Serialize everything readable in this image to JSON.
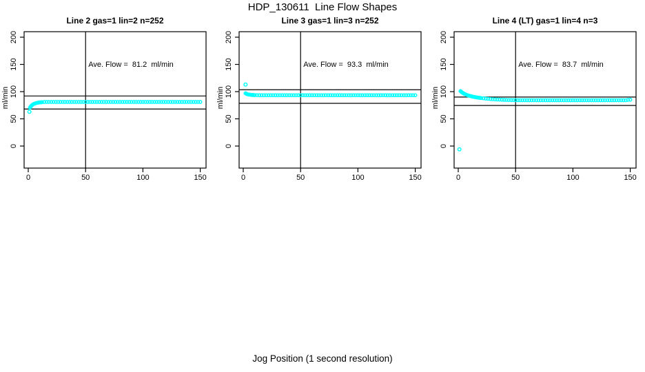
{
  "figure": {
    "title": "HDP_130611  Line Flow Shapes",
    "xlabel": "Jog Position (1 second resolution)",
    "background_color": "#ffffff",
    "point_color": "#00ffff",
    "axis_color": "#000000",
    "text_color": "#000000"
  },
  "chart_data": [
    {
      "type": "scatter",
      "title": "Line 2 gas=1 lin=2 n=252",
      "line": 2,
      "gas": 1,
      "lin": 2,
      "n": 252,
      "annotation": "Ave. Flow =  81.2  ml/min",
      "ave_flow_ml_min": 81.2,
      "ylabel": "ml/min",
      "x_ticks": [
        0,
        50,
        100,
        150
      ],
      "y_ticks": [
        0,
        50,
        100,
        150,
        200
      ],
      "xlim": [
        0,
        150
      ],
      "ylim": [
        0,
        200
      ],
      "grid": false,
      "reference_hlines": [
        92,
        68
      ],
      "reference_vline": 50,
      "outlier_points": [
        [
          1,
          63
        ]
      ],
      "points": [
        [
          1.5,
          70.5
        ],
        [
          2,
          72
        ],
        [
          2.5,
          73.5
        ],
        [
          3,
          74.5
        ],
        [
          3.5,
          75.5
        ],
        [
          4,
          76.3
        ],
        [
          5,
          77.5
        ],
        [
          6,
          78.4
        ],
        [
          7,
          79
        ],
        [
          8,
          79.5
        ],
        [
          9,
          79.9
        ],
        [
          10,
          80.2
        ],
        [
          11,
          80.4
        ],
        [
          12,
          80.6
        ],
        [
          14,
          81
        ],
        [
          16,
          81
        ],
        [
          18,
          81
        ],
        [
          20,
          81
        ],
        [
          22,
          81
        ],
        [
          24,
          81
        ],
        [
          26,
          81
        ],
        [
          28,
          81
        ],
        [
          30,
          81
        ],
        [
          32,
          81
        ],
        [
          34,
          81
        ],
        [
          36,
          81
        ],
        [
          38,
          81
        ],
        [
          40,
          81
        ],
        [
          42,
          81
        ],
        [
          44,
          81
        ],
        [
          46,
          81
        ],
        [
          48,
          81
        ],
        [
          50,
          81
        ],
        [
          52,
          81
        ],
        [
          54,
          81
        ],
        [
          56,
          81
        ],
        [
          58,
          81
        ],
        [
          60,
          81
        ],
        [
          62,
          81
        ],
        [
          64,
          81
        ],
        [
          66,
          81
        ],
        [
          68,
          81
        ],
        [
          70,
          81
        ],
        [
          72,
          81
        ],
        [
          74,
          81
        ],
        [
          76,
          81
        ],
        [
          78,
          81
        ],
        [
          80,
          81
        ],
        [
          82,
          81
        ],
        [
          84,
          81
        ],
        [
          86,
          81
        ],
        [
          88,
          81
        ],
        [
          90,
          81
        ],
        [
          92,
          81
        ],
        [
          94,
          81
        ],
        [
          96,
          81
        ],
        [
          98,
          81
        ],
        [
          100,
          81
        ],
        [
          102,
          81
        ],
        [
          104,
          81
        ],
        [
          106,
          81
        ],
        [
          108,
          81
        ],
        [
          110,
          81
        ],
        [
          112,
          81
        ],
        [
          114,
          81
        ],
        [
          116,
          81
        ],
        [
          118,
          81
        ],
        [
          120,
          81
        ],
        [
          122,
          81
        ],
        [
          124,
          81
        ],
        [
          126,
          81
        ],
        [
          128,
          81
        ],
        [
          130,
          81
        ],
        [
          132,
          81
        ],
        [
          134,
          81
        ],
        [
          136,
          81
        ],
        [
          138,
          81
        ],
        [
          140,
          81
        ],
        [
          142,
          81
        ],
        [
          144,
          81
        ],
        [
          146,
          81
        ],
        [
          148,
          81
        ],
        [
          150,
          81
        ]
      ]
    },
    {
      "type": "scatter",
      "title": "Line 3 gas=1 lin=3 n=252",
      "line": 3,
      "gas": 1,
      "lin": 3,
      "n": 252,
      "annotation": "Ave. Flow =  93.3  ml/min",
      "ave_flow_ml_min": 93.3,
      "ylabel": "ml/min",
      "x_ticks": [
        0,
        50,
        100,
        150
      ],
      "y_ticks": [
        0,
        50,
        100,
        150,
        200
      ],
      "xlim": [
        0,
        150
      ],
      "ylim": [
        0,
        200
      ],
      "grid": false,
      "reference_hlines": [
        103.5,
        78.5
      ],
      "reference_vline": 50,
      "outlier_points": [
        [
          2,
          113
        ]
      ],
      "points": [
        [
          2,
          97
        ],
        [
          2.5,
          96.3
        ],
        [
          3,
          95.8
        ],
        [
          3.5,
          95.3
        ],
        [
          4,
          95
        ],
        [
          5,
          94.6
        ],
        [
          6,
          94.3
        ],
        [
          7,
          94
        ],
        [
          8,
          93.8
        ],
        [
          9,
          93.7
        ],
        [
          10,
          93.6
        ],
        [
          12,
          93.5
        ],
        [
          14,
          93.4
        ],
        [
          16,
          93.4
        ],
        [
          18,
          93.4
        ],
        [
          20,
          93.4
        ],
        [
          22,
          93.4
        ],
        [
          24,
          93.4
        ],
        [
          26,
          93.4
        ],
        [
          28,
          93.4
        ],
        [
          30,
          93.4
        ],
        [
          32,
          93.4
        ],
        [
          34,
          93.4
        ],
        [
          36,
          93.4
        ],
        [
          38,
          93.4
        ],
        [
          40,
          93.4
        ],
        [
          42,
          93.4
        ],
        [
          44,
          93.4
        ],
        [
          46,
          93.4
        ],
        [
          48,
          93.4
        ],
        [
          50,
          93.4
        ],
        [
          52,
          93.4
        ],
        [
          54,
          93.4
        ],
        [
          56,
          93.4
        ],
        [
          58,
          93.4
        ],
        [
          60,
          93.4
        ],
        [
          62,
          93.4
        ],
        [
          64,
          93.4
        ],
        [
          66,
          93.4
        ],
        [
          68,
          93.4
        ],
        [
          70,
          93.4
        ],
        [
          72,
          93.4
        ],
        [
          74,
          93.4
        ],
        [
          76,
          93.4
        ],
        [
          78,
          93.4
        ],
        [
          80,
          93.4
        ],
        [
          82,
          93.4
        ],
        [
          84,
          93.4
        ],
        [
          86,
          93.4
        ],
        [
          88,
          93.4
        ],
        [
          90,
          93.4
        ],
        [
          92,
          93.4
        ],
        [
          94,
          93.4
        ],
        [
          96,
          93.4
        ],
        [
          98,
          93.4
        ],
        [
          100,
          93.4
        ],
        [
          102,
          93.4
        ],
        [
          104,
          93.4
        ],
        [
          106,
          93.4
        ],
        [
          108,
          93.4
        ],
        [
          110,
          93.4
        ],
        [
          112,
          93.4
        ],
        [
          114,
          93.4
        ],
        [
          116,
          93.4
        ],
        [
          118,
          93.4
        ],
        [
          120,
          93.4
        ],
        [
          122,
          93.4
        ],
        [
          124,
          93.4
        ],
        [
          126,
          93.4
        ],
        [
          128,
          93.4
        ],
        [
          130,
          93.4
        ],
        [
          132,
          93.4
        ],
        [
          134,
          93.4
        ],
        [
          136,
          93.4
        ],
        [
          138,
          93.4
        ],
        [
          140,
          93.4
        ],
        [
          142,
          93.4
        ],
        [
          144,
          93.4
        ],
        [
          146,
          93.4
        ],
        [
          148,
          93.4
        ],
        [
          150,
          93.4
        ]
      ]
    },
    {
      "type": "scatter",
      "title": "Line 4 (LT) gas=1 lin=4 n=3",
      "line": 4,
      "line_note": "LT",
      "gas": 1,
      "lin": 4,
      "n": 3,
      "annotation": "Ave. Flow =  83.7  ml/min",
      "ave_flow_ml_min": 83.7,
      "ylabel": "ml/min",
      "x_ticks": [
        0,
        50,
        100,
        150
      ],
      "y_ticks": [
        0,
        50,
        100,
        150,
        200
      ],
      "xlim": [
        0,
        150
      ],
      "ylim": [
        0,
        200
      ],
      "grid": false,
      "reference_hlines": [
        90,
        74.5
      ],
      "reference_vline": 50,
      "outlier_points": [
        [
          1,
          -6
        ]
      ],
      "points": [
        [
          2,
          101
        ],
        [
          2.5,
          100
        ],
        [
          3,
          99
        ],
        [
          3.5,
          98.2
        ],
        [
          4,
          97.5
        ],
        [
          5,
          96.2
        ],
        [
          6,
          95.2
        ],
        [
          7,
          94.3
        ],
        [
          8,
          93.5
        ],
        [
          9,
          92.8
        ],
        [
          10,
          92.2
        ],
        [
          11,
          91.6
        ],
        [
          12,
          91.1
        ],
        [
          13,
          90.6
        ],
        [
          14,
          90.2
        ],
        [
          15,
          89.8
        ],
        [
          16,
          89.4
        ],
        [
          17,
          89.1
        ],
        [
          18,
          88.8
        ],
        [
          19,
          88.5
        ],
        [
          20,
          88.2
        ],
        [
          22,
          87.7
        ],
        [
          24,
          87.2
        ],
        [
          26,
          86.8
        ],
        [
          28,
          86.4
        ],
        [
          30,
          86.1
        ],
        [
          32,
          85.8
        ],
        [
          34,
          85.5
        ],
        [
          36,
          85.3
        ],
        [
          38,
          85.1
        ],
        [
          40,
          84.9
        ],
        [
          42,
          84.7
        ],
        [
          44,
          84.6
        ],
        [
          46,
          84.5
        ],
        [
          48,
          84.4
        ],
        [
          50,
          84.3
        ],
        [
          52,
          84.2
        ],
        [
          54,
          84.2
        ],
        [
          56,
          84.2
        ],
        [
          58,
          84.2
        ],
        [
          60,
          84.2
        ],
        [
          62,
          84.2
        ],
        [
          64,
          84.2
        ],
        [
          66,
          84.2
        ],
        [
          68,
          84.2
        ],
        [
          70,
          84.2
        ],
        [
          72,
          84.2
        ],
        [
          74,
          84.2
        ],
        [
          76,
          84.2
        ],
        [
          78,
          84.2
        ],
        [
          80,
          84.2
        ],
        [
          82,
          84.2
        ],
        [
          84,
          84.2
        ],
        [
          86,
          84.2
        ],
        [
          88,
          84.2
        ],
        [
          90,
          84.2
        ],
        [
          92,
          84.2
        ],
        [
          94,
          84.2
        ],
        [
          96,
          84.2
        ],
        [
          98,
          84.2
        ],
        [
          100,
          84.2
        ],
        [
          102,
          84.2
        ],
        [
          104,
          84.2
        ],
        [
          106,
          84.2
        ],
        [
          108,
          84.2
        ],
        [
          110,
          84.2
        ],
        [
          112,
          84.2
        ],
        [
          114,
          84.2
        ],
        [
          116,
          84.2
        ],
        [
          118,
          84.2
        ],
        [
          120,
          84.2
        ],
        [
          122,
          84.2
        ],
        [
          124,
          84.2
        ],
        [
          126,
          84.2
        ],
        [
          128,
          84.2
        ],
        [
          130,
          84.2
        ],
        [
          132,
          84.2
        ],
        [
          134,
          84.2
        ],
        [
          136,
          84.2
        ],
        [
          138,
          84.2
        ],
        [
          140,
          84.2
        ],
        [
          142,
          84.2
        ],
        [
          144,
          84.2
        ],
        [
          146,
          84.2
        ],
        [
          148,
          84.8
        ],
        [
          150,
          85.2
        ]
      ]
    }
  ]
}
